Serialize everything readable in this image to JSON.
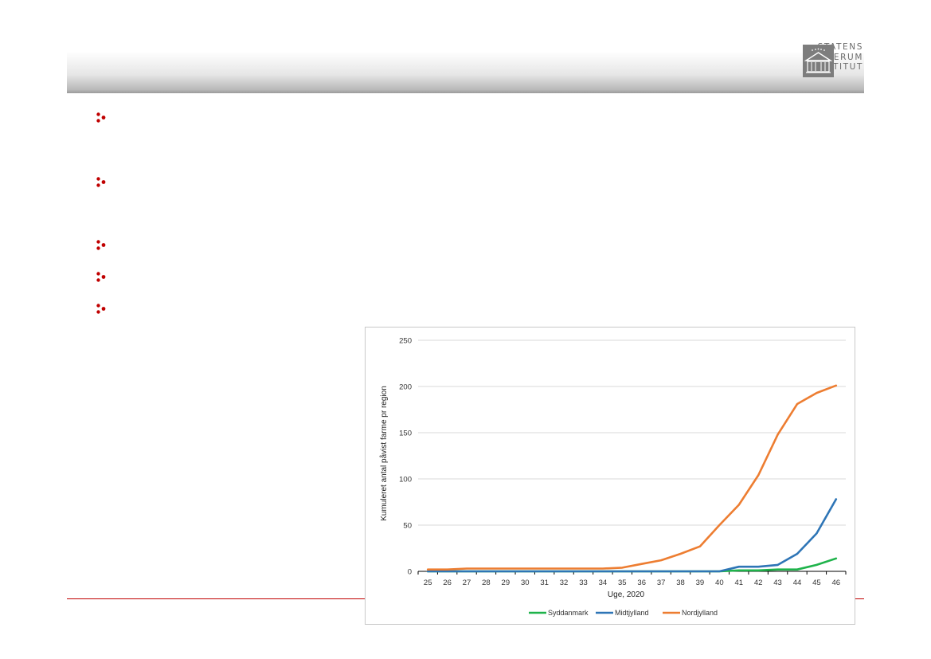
{
  "brand": {
    "logo_lines": [
      "STATENS",
      "SERUM",
      "INSTITUT"
    ],
    "logo_color": "#6a6a6a",
    "accent_color": "#c00000"
  },
  "bullets": {
    "count": 5,
    "color": "#c00000"
  },
  "chart_data": {
    "type": "line",
    "title": "",
    "xlabel": "Uge, 2020",
    "ylabel": "Kumuleret antal påvist farme pr region",
    "categories": [
      "25",
      "26",
      "27",
      "28",
      "29",
      "30",
      "31",
      "32",
      "33",
      "34",
      "35",
      "36",
      "37",
      "38",
      "39",
      "40",
      "41",
      "42",
      "43",
      "44",
      "45",
      "46"
    ],
    "ylim": [
      0,
      250
    ],
    "yticks": [
      0,
      50,
      100,
      150,
      200,
      250
    ],
    "grid": "horizontal",
    "legend_position": "bottom",
    "series": [
      {
        "name": "Syddanmark",
        "color": "#1fb34b",
        "values": [
          0,
          0,
          0,
          0,
          0,
          0,
          0,
          0,
          0,
          0,
          0,
          0,
          0,
          0,
          0,
          0,
          1,
          1,
          2,
          2,
          7,
          14
        ]
      },
      {
        "name": "Midtjylland",
        "color": "#2e75b6",
        "values": [
          0,
          0,
          0,
          0,
          0,
          0,
          0,
          0,
          0,
          0,
          0,
          0,
          0,
          0,
          0,
          0,
          5,
          5,
          7,
          19,
          41,
          78
        ]
      },
      {
        "name": "Nordjylland",
        "color": "#ed7d31",
        "values": [
          2,
          2,
          3,
          3,
          3,
          3,
          3,
          3,
          3,
          3,
          4,
          8,
          12,
          19,
          27,
          50,
          72,
          104,
          148,
          181,
          193,
          201
        ]
      }
    ]
  }
}
